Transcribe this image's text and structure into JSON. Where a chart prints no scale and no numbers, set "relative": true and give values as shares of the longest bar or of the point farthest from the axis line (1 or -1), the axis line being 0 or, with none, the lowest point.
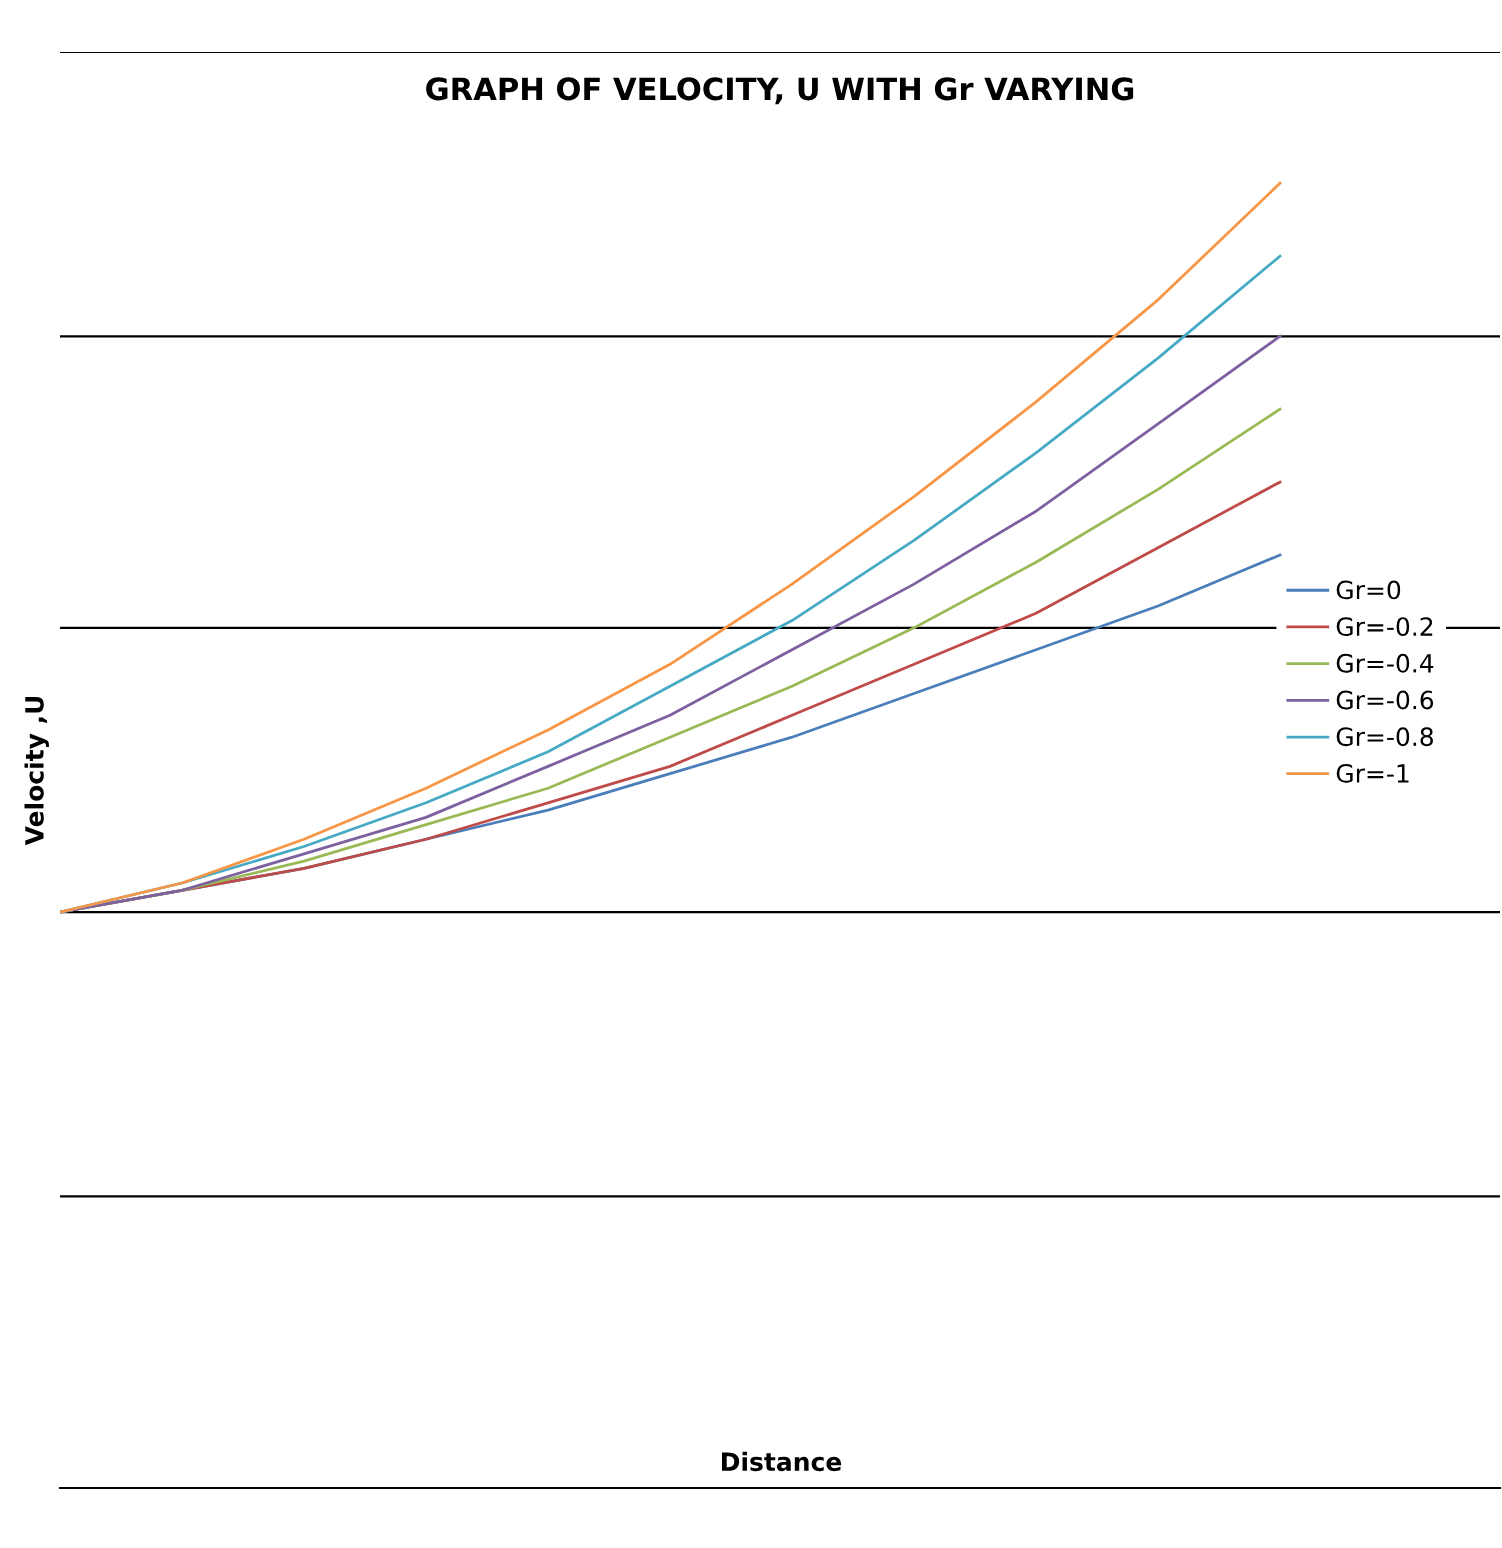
{
  "chart_data": {
    "type": "line",
    "title": "GRAPH OF VELOCITY, U WITH Gr VARYING",
    "annotations": [
      "Distance"
    ],
    "ylabel": "Velocity ,U",
    "relative": true,
    "ref_lines": [
      {
        "axis": "y",
        "value": 1.18
      },
      {
        "axis": "y",
        "value": 0.79
      },
      {
        "axis": "y",
        "value": 0.39
      },
      {
        "axis": "y",
        "value": 0
      },
      {
        "axis": "y",
        "value": -0.39
      },
      {
        "axis": "y",
        "value": -0.79
      }
    ],
    "legend": "right",
    "marker": "none",
    "line_style": "solid",
    "categories": [
      null,
      null,
      null,
      null,
      null,
      null,
      null,
      null,
      null,
      null,
      null
    ],
    "series": [
      {
        "name": "Gr=0",
        "color": "#4a7ebb",
        "values": [
          0,
          0.03,
          0.06,
          0.1,
          0.14,
          0.19,
          0.24,
          0.3,
          0.36,
          0.42,
          0.49
        ]
      },
      {
        "name": "Gr=-0.2",
        "color": "#be4b48",
        "values": [
          0,
          0.03,
          0.06,
          0.1,
          0.15,
          0.2,
          0.27,
          0.34,
          0.41,
          0.5,
          0.59
        ]
      },
      {
        "name": "Gr=-0.4",
        "color": "#98b954",
        "values": [
          0,
          0.03,
          0.07,
          0.12,
          0.17,
          0.24,
          0.31,
          0.39,
          0.48,
          0.58,
          0.69
        ]
      },
      {
        "name": "Gr=-0.6",
        "color": "#7d60a0",
        "values": [
          0,
          0.03,
          0.08,
          0.13,
          0.2,
          0.27,
          0.36,
          0.45,
          0.55,
          0.67,
          0.79
        ]
      },
      {
        "name": "Gr=-0.8",
        "color": "#46aac5",
        "values": [
          0,
          0.04,
          0.09,
          0.15,
          0.22,
          0.31,
          0.4,
          0.51,
          0.63,
          0.76,
          0.9
        ]
      },
      {
        "name": "Gr=-1",
        "color": "#f79646",
        "values": [
          0,
          0.04,
          0.1,
          0.17,
          0.25,
          0.34,
          0.45,
          0.57,
          0.7,
          0.84,
          1
        ]
      }
    ]
  }
}
